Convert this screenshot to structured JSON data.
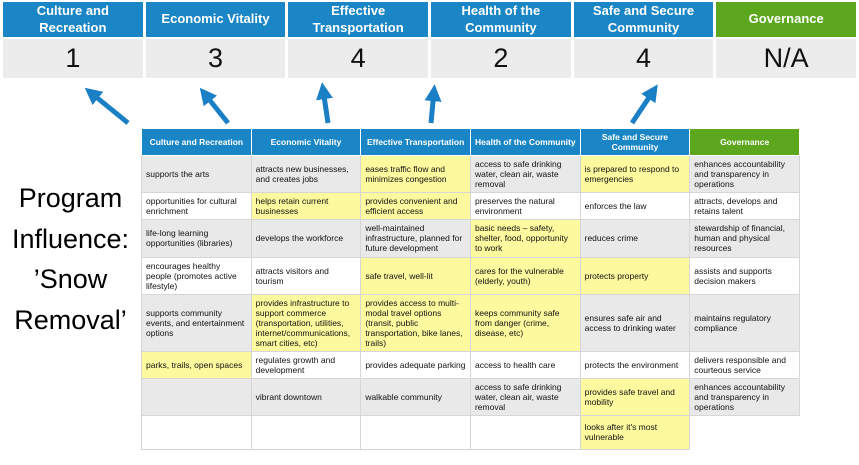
{
  "priorities": {
    "columns": [
      {
        "label": "Culture and Recreation",
        "color_key": "blue"
      },
      {
        "label": "Economic Vitality",
        "color_key": "blue"
      },
      {
        "label": "Effective Transportation",
        "color_key": "blue"
      },
      {
        "label": "Health of the Community",
        "color_key": "blue"
      },
      {
        "label": "Safe and Secure Community",
        "color_key": "blue"
      },
      {
        "label": "Governance",
        "color_key": "green"
      }
    ],
    "scores": [
      "1",
      "3",
      "4",
      "2",
      "4",
      "N/A"
    ]
  },
  "program_label": "Program Influence: ’Snow Removal’",
  "matrix": {
    "columns": [
      "Culture and Recreation",
      "Economic Vitality",
      "Effective Transportation",
      "Health of the Community",
      "Safe and Secure Community",
      "Governance"
    ],
    "rows": [
      [
        {
          "text": "supports the arts",
          "hl": false
        },
        {
          "text": "attracts new businesses, and creates jobs",
          "hl": false
        },
        {
          "text": "eases traffic flow and minimizes congestion",
          "hl": true
        },
        {
          "text": "access to safe drinking water, clean air, waste removal",
          "hl": false
        },
        {
          "text": "is prepared to respond to emergencies",
          "hl": true
        },
        {
          "text": "enhances accountability and transparency in operations",
          "hl": false
        }
      ],
      [
        {
          "text": "opportunities for cultural enrichment",
          "hl": false
        },
        {
          "text": "helps retain current businesses",
          "hl": true
        },
        {
          "text": "provides convenient and efficient access",
          "hl": true
        },
        {
          "text": "preserves the natural environment",
          "hl": false
        },
        {
          "text": "enforces the law",
          "hl": false
        },
        {
          "text": "attracts, develops and retains talent",
          "hl": false
        }
      ],
      [
        {
          "text": "life-long learning opportunities (libraries)",
          "hl": false
        },
        {
          "text": "develops the workforce",
          "hl": false
        },
        {
          "text": "well-maintained infrastructure, planned for future development",
          "hl": false
        },
        {
          "text": "basic needs – safety, shelter, food, opportunity to work",
          "hl": true
        },
        {
          "text": "reduces crime",
          "hl": false
        },
        {
          "text": "stewardship of financial, human and physical resources",
          "hl": false
        }
      ],
      [
        {
          "text": "encourages healthy people (promotes active lifestyle)",
          "hl": false
        },
        {
          "text": "attracts visitors and tourism",
          "hl": false
        },
        {
          "text": "safe travel, well-lit",
          "hl": true
        },
        {
          "text": "cares for the vulnerable (elderly, youth)",
          "hl": true
        },
        {
          "text": "protects property",
          "hl": true
        },
        {
          "text": "assists and supports decision makers",
          "hl": false
        }
      ],
      [
        {
          "text": "supports community events, and entertainment options",
          "hl": false
        },
        {
          "text": "provides infrastructure to support commerce (transportation, utilities, internet/communications, smart cities, etc)",
          "hl": true
        },
        {
          "text": "provides access to multi-modal travel options (transit, public transportation, bike lanes, trails)",
          "hl": true
        },
        {
          "text": "keeps community safe from danger (crime, disease, etc)",
          "hl": true
        },
        {
          "text": "ensures safe air and access to drinking water",
          "hl": false
        },
        {
          "text": "maintains regulatory compliance",
          "hl": false
        }
      ],
      [
        {
          "text": "parks, trails, open spaces",
          "hl": true
        },
        {
          "text": "regulates growth and development",
          "hl": false
        },
        {
          "text": "provides adequate parking",
          "hl": false
        },
        {
          "text": "access to health care",
          "hl": false
        },
        {
          "text": "protects the environment",
          "hl": false
        },
        {
          "text": "delivers responsible and courteous service",
          "hl": false
        }
      ],
      [
        {
          "text": "",
          "hl": false
        },
        {
          "text": "vibrant downtown",
          "hl": false
        },
        {
          "text": "walkable community",
          "hl": false
        },
        {
          "text": "access to safe drinking water, clean air, waste removal",
          "hl": false
        },
        {
          "text": "provides safe travel and mobility",
          "hl": true
        },
        {
          "text": "enhances accountability and transparency in operations",
          "hl": false
        }
      ],
      [
        {
          "text": "",
          "hl": false
        },
        {
          "text": "",
          "hl": false
        },
        {
          "text": "",
          "hl": false
        },
        {
          "text": "",
          "hl": false
        },
        {
          "text": "looks after it's most vulnerable",
          "hl": true
        },
        {
          "text": "",
          "hl": false,
          "blank": true
        }
      ]
    ]
  },
  "colors": {
    "blue": "#1b86c5",
    "green": "#5ca71e",
    "highlight": "#fdf99e",
    "row_gray": "#e9e9e9",
    "score_bg": "#ececec",
    "arrow": "#1b7fc6"
  }
}
